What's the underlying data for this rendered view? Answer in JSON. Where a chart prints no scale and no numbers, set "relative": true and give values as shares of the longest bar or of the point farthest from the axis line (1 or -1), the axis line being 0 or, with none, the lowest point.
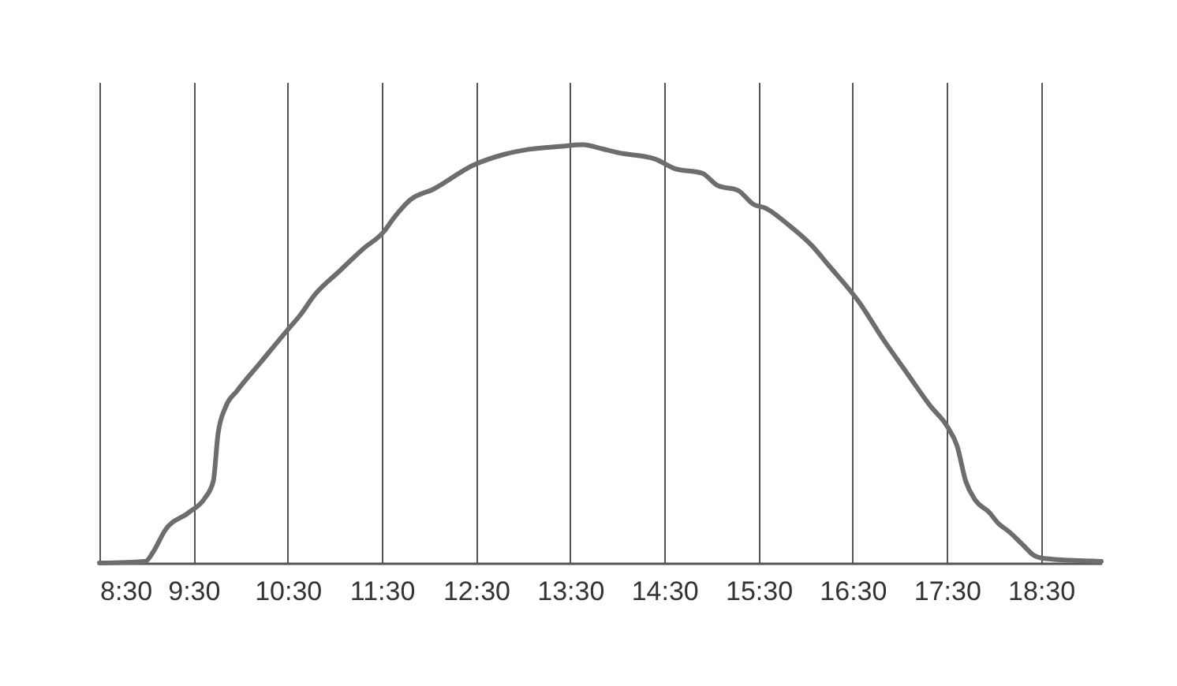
{
  "chart_data": {
    "type": "line",
    "relative": true,
    "grid": "x",
    "tick_labels": "x",
    "marker": "none",
    "line_style": "solid",
    "xlim": [
      8.5,
      19.14
    ],
    "xticks": [
      {
        "value": 8.5,
        "label": "8:30"
      },
      {
        "value": 9.5,
        "label": "9:30"
      },
      {
        "value": 10.5,
        "label": "10:30"
      },
      {
        "value": 11.5,
        "label": "11:30"
      },
      {
        "value": 12.5,
        "label": "12:30"
      },
      {
        "value": 13.5,
        "label": "13:30"
      },
      {
        "value": 14.5,
        "label": "14:30"
      },
      {
        "value": 15.5,
        "label": "15:30"
      },
      {
        "value": 16.5,
        "label": "16:30"
      },
      {
        "value": 17.5,
        "label": "17:30"
      },
      {
        "value": 18.5,
        "label": "18:30"
      }
    ],
    "series": [
      {
        "color": "#6d6d6d",
        "x": [
          8.5,
          8.99,
          9.07,
          9.2,
          9.45,
          9.62,
          9.71,
          9.76,
          9.84,
          9.96,
          10.21,
          10.49,
          10.63,
          10.79,
          11.05,
          11.3,
          11.52,
          11.63,
          11.8,
          12.05,
          12.47,
          12.8,
          13.06,
          13.39,
          13.64,
          13.81,
          14.01,
          14.4,
          14.61,
          14.9,
          15.07,
          15.28,
          15.45,
          15.57,
          15.82,
          16.07,
          16.24,
          16.57,
          16.82,
          17.08,
          17.33,
          17.5,
          17.61,
          17.7,
          17.8,
          17.95,
          18.05,
          18.16,
          18.3,
          18.42,
          18.53,
          19.14
        ],
        "values": [
          0,
          0.004,
          0.026,
          0.079,
          0.121,
          0.155,
          0.196,
          0.309,
          0.373,
          0.411,
          0.479,
          0.555,
          0.592,
          0.642,
          0.698,
          0.751,
          0.792,
          0.826,
          0.868,
          0.894,
          0.951,
          0.977,
          0.989,
          0.996,
          1.0,
          0.992,
          0.981,
          0.966,
          0.943,
          0.932,
          0.902,
          0.891,
          0.857,
          0.849,
          0.808,
          0.758,
          0.713,
          0.623,
          0.536,
          0.453,
          0.374,
          0.328,
          0.279,
          0.196,
          0.151,
          0.121,
          0.094,
          0.075,
          0.045,
          0.019,
          0.011,
          0.004
        ]
      }
    ]
  }
}
